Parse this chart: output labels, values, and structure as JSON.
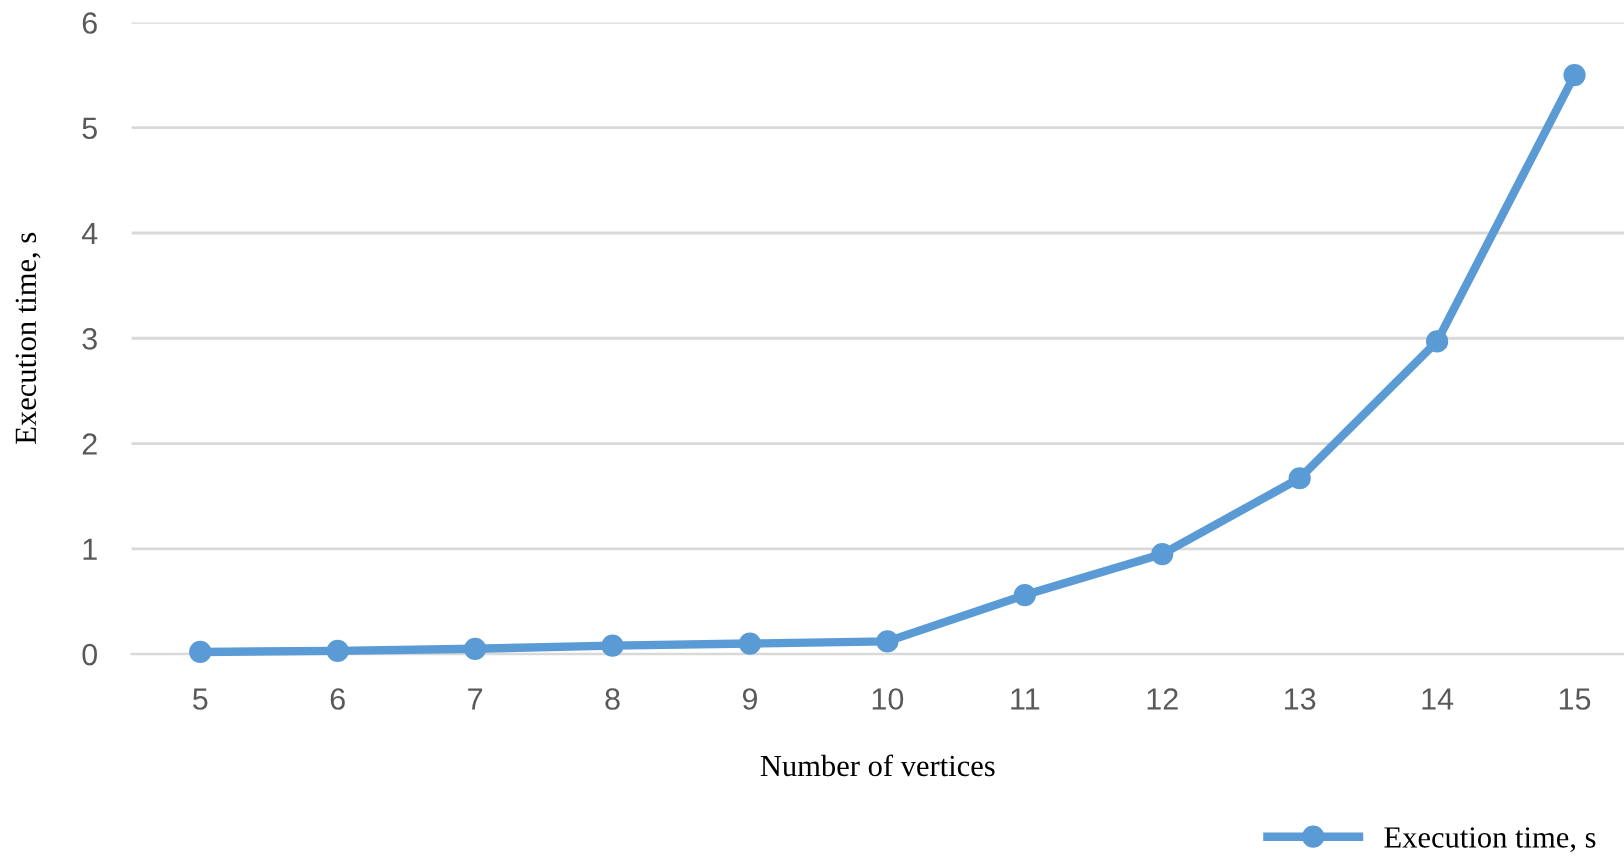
{
  "chart_data": {
    "type": "line",
    "xlabel": "Number of vertices",
    "ylabel": "Execution time, s",
    "categories": [
      "5",
      "6",
      "7",
      "8",
      "9",
      "10",
      "11",
      "12",
      "13",
      "14",
      "15"
    ],
    "series": [
      {
        "name": "Execution time, s",
        "color": "#5b9bd5",
        "values": [
          0.02,
          0.03,
          0.05,
          0.08,
          0.1,
          0.12,
          0.56,
          0.95,
          1.67,
          2.97,
          5.5
        ]
      }
    ],
    "ylim": [
      0,
      6
    ],
    "yticks": [
      0,
      1,
      2,
      3,
      4,
      5,
      6
    ],
    "grid": "y",
    "legend": "bottom right",
    "marker": "circle",
    "line_style": "solid"
  }
}
